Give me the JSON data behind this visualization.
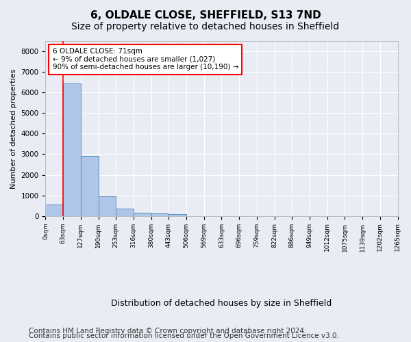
{
  "title_line1": "6, OLDALE CLOSE, SHEFFIELD, S13 7ND",
  "title_line2": "Size of property relative to detached houses in Sheffield",
  "xlabel": "Distribution of detached houses by size in Sheffield",
  "ylabel": "Number of detached properties",
  "bar_values": [
    550,
    6430,
    2920,
    970,
    340,
    160,
    110,
    80,
    0,
    0,
    0,
    0,
    0,
    0,
    0,
    0,
    0,
    0,
    0,
    0
  ],
  "bar_labels": [
    "0sqm",
    "63sqm",
    "127sqm",
    "190sqm",
    "253sqm",
    "316sqm",
    "380sqm",
    "443sqm",
    "506sqm",
    "569sqm",
    "633sqm",
    "696sqm",
    "759sqm",
    "822sqm",
    "886sqm",
    "949sqm",
    "1012sqm",
    "1075sqm",
    "1139sqm",
    "1202sqm",
    "1265sqm"
  ],
  "bar_color": "#aec6e8",
  "bar_edge_color": "#5a8fc2",
  "annotation_box_text": "6 OLDALE CLOSE: 71sqm\n← 9% of detached houses are smaller (1,027)\n90% of semi-detached houses are larger (10,190) →",
  "red_line_x": 1,
  "ylim": [
    0,
    8500
  ],
  "yticks": [
    0,
    1000,
    2000,
    3000,
    4000,
    5000,
    6000,
    7000,
    8000
  ],
  "footer_line1": "Contains HM Land Registry data © Crown copyright and database right 2024.",
  "footer_line2": "Contains public sector information licensed under the Open Government Licence v3.0.",
  "bg_color": "#eaecf5",
  "plot_bg_color": "#eaecf5",
  "grid_color": "#ffffff",
  "title_fontsize": 11,
  "subtitle_fontsize": 10,
  "footer_fontsize": 7.5,
  "ylabel_fontsize": 8,
  "xlabel_fontsize": 9,
  "tick_fontsize": 6.5
}
